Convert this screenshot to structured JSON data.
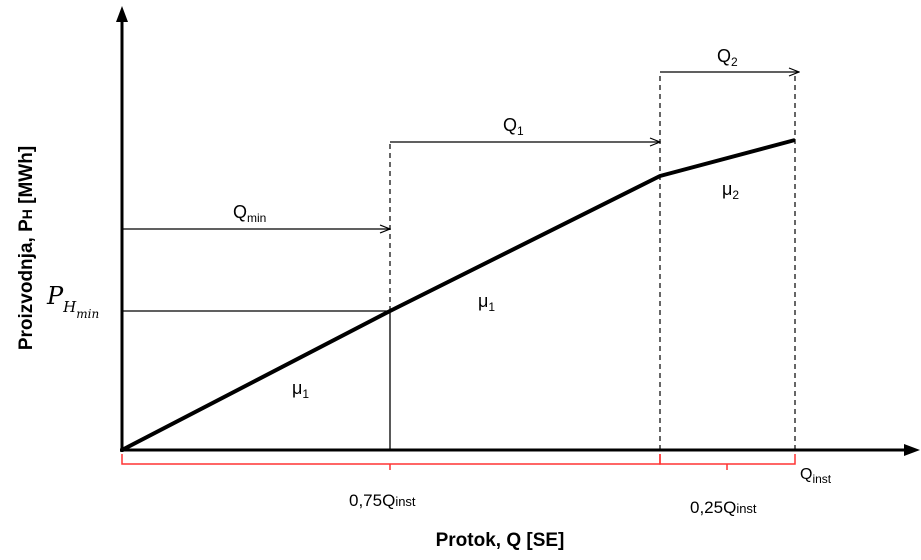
{
  "axes": {
    "y_title": "Proizvodnja, P",
    "y_title_sub": "H",
    "y_title_unit": " [MWh]",
    "x_title": "Protok, Q [SE]"
  },
  "labels": {
    "q_min": "Q",
    "q_min_sub": "min",
    "q_1": "Q",
    "q_1_sub": "1",
    "q_2": "Q",
    "q_2_sub": "2",
    "mu_1_low": "μ",
    "mu_1_low_sub": "1",
    "mu_1_high": "μ",
    "mu_1_high_sub": "1",
    "mu_2": "μ",
    "mu_2_sub": "2",
    "p_h_min": "P",
    "p_h_min_sub": "H",
    "p_h_min_subsub": "min",
    "q_inst": "Q",
    "q_inst_sub": "inst",
    "range_075": "0,75Q",
    "range_075_sub": "inst",
    "range_025": "0,25Q",
    "range_025_sub": "inst"
  },
  "colors": {
    "axis": "#000000",
    "curve": "#000000",
    "range_brace": "#ff3333"
  }
}
